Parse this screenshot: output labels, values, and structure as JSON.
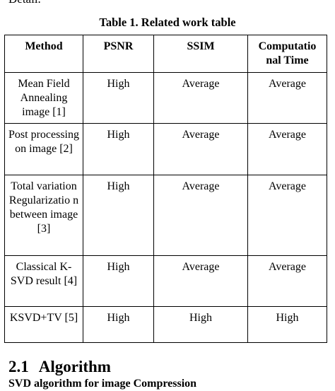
{
  "top_fragment": "Detail.",
  "table": {
    "caption": "Table 1. Related work table",
    "headers": [
      "Method",
      "PSNR",
      "SSIM",
      "Computatio nal Time"
    ],
    "rows": [
      [
        "Mean Field Annealing image [1]",
        "High",
        "Average",
        "Average"
      ],
      [
        "Post processing on image [2]",
        "High",
        "Average",
        "Average"
      ],
      [
        "Total variation Regularizatio n between image [3]",
        "High",
        "Average",
        "Average"
      ],
      [
        "Classical K-SVD result [4]",
        "High",
        "Average",
        "Average"
      ],
      [
        "KSVD+TV [5]",
        "High",
        "High",
        "High"
      ]
    ]
  },
  "section": {
    "number": "2.1",
    "title": "Algorithm",
    "subheading": "SVD algorithm for image Compression"
  }
}
